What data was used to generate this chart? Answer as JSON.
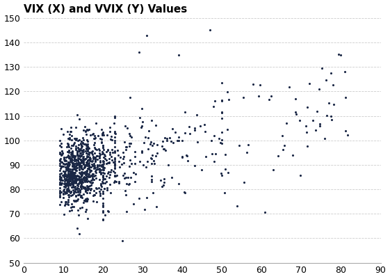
{
  "title": "VIX (X) and VVIX (Y) Values",
  "xlim": [
    0,
    90
  ],
  "ylim": [
    50,
    150
  ],
  "xticks": [
    0,
    10,
    20,
    30,
    40,
    50,
    60,
    70,
    80,
    90
  ],
  "yticks": [
    50,
    60,
    70,
    80,
    90,
    100,
    110,
    120,
    130,
    140,
    150
  ],
  "dot_color": "#1a2745",
  "dot_size": 5,
  "background_color": "#ffffff",
  "grid_color": "#cccccc",
  "title_fontsize": 11,
  "seed": 12345,
  "n_core": 900,
  "n_mid": 200,
  "n_high": 60
}
